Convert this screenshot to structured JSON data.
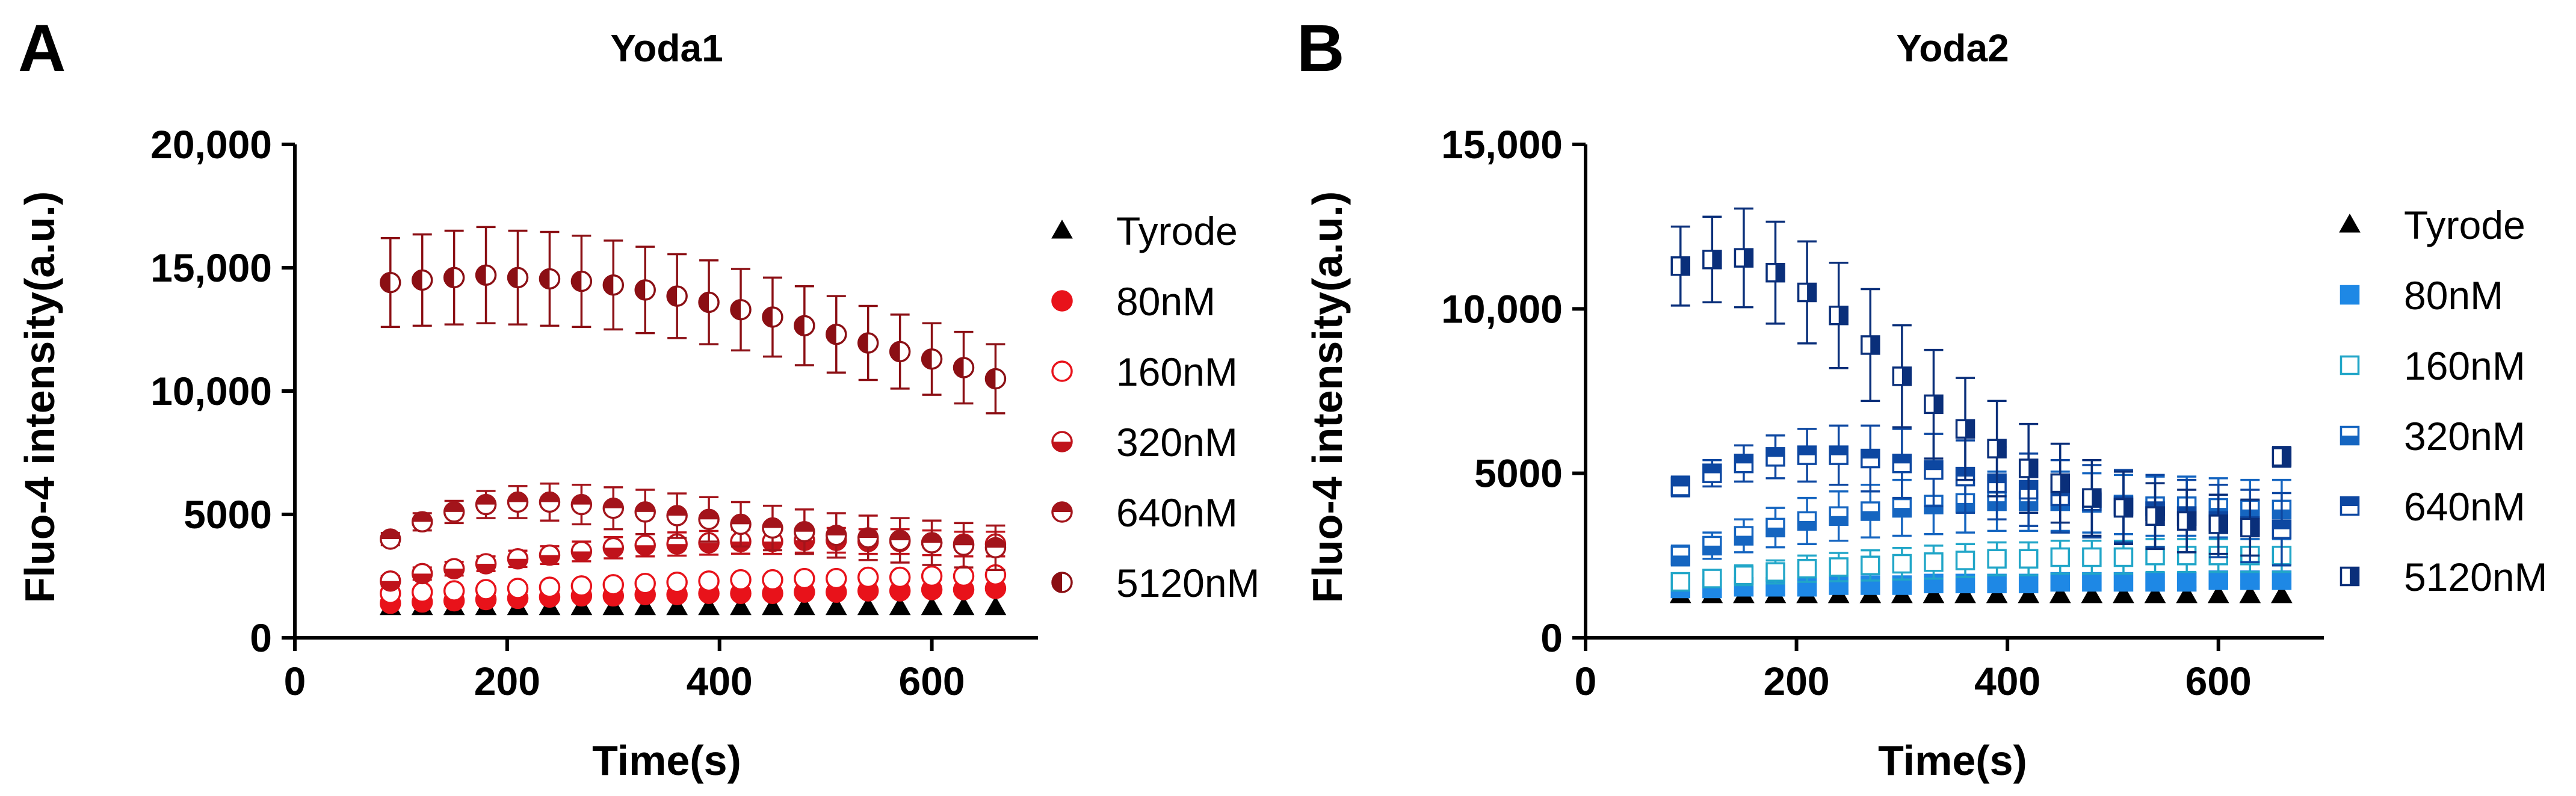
{
  "panels": [
    {
      "letter": "A",
      "title": "Yoda1",
      "xlabel": "Time(s)",
      "ylabel": "Fluo-4 intensity(a.u.)"
    },
    {
      "letter": "B",
      "title": "Yoda2",
      "xlabel": "Time(s)",
      "ylabel": "Fluo-4 intensity(a.u.)"
    }
  ],
  "chart_data": [
    {
      "type": "scatter",
      "title": "Yoda1",
      "xlabel": "Time(s)",
      "ylabel": "Fluo-4 intensity(a.u.)",
      "xlim": [
        0,
        700
      ],
      "ylim": [
        0,
        20000
      ],
      "xticks": [
        0,
        200,
        400,
        600
      ],
      "xtick_labels": [
        "0",
        "200",
        "400",
        "600"
      ],
      "yticks": [
        0,
        5000,
        10000,
        15000,
        20000
      ],
      "ytick_labels": [
        "0",
        "5000",
        "10,000",
        "15,000",
        "20,000"
      ],
      "legend_position": "right",
      "x": [
        90,
        120,
        150,
        180,
        210,
        240,
        270,
        300,
        330,
        360,
        390,
        420,
        450,
        480,
        510,
        540,
        570,
        600,
        630,
        660
      ],
      "series": [
        {
          "name": "Tyrode",
          "marker": "triangle",
          "fill": "full",
          "color": "#000000",
          "values": [
            1250,
            1250,
            1250,
            1250,
            1250,
            1250,
            1250,
            1250,
            1250,
            1250,
            1250,
            1250,
            1250,
            1250,
            1250,
            1250,
            1250,
            1250,
            1250,
            1250
          ],
          "errors": [
            0,
            0,
            0,
            0,
            0,
            0,
            0,
            0,
            0,
            0,
            0,
            0,
            0,
            0,
            0,
            0,
            0,
            0,
            0,
            0
          ]
        },
        {
          "name": "80nM",
          "marker": "circle",
          "fill": "full",
          "color": "#e8121a",
          "values": [
            1400,
            1450,
            1500,
            1550,
            1600,
            1650,
            1700,
            1700,
            1750,
            1750,
            1800,
            1800,
            1800,
            1850,
            1850,
            1900,
            1900,
            1950,
            1950,
            2000
          ],
          "errors": [
            100,
            100,
            100,
            100,
            100,
            100,
            100,
            120,
            120,
            120,
            120,
            120,
            120,
            120,
            120,
            120,
            120,
            120,
            120,
            120
          ]
        },
        {
          "name": "160nM",
          "marker": "circle",
          "fill": "none",
          "color": "#e8121a",
          "values": [
            1800,
            1850,
            1900,
            1950,
            2000,
            2050,
            2100,
            2150,
            2200,
            2250,
            2300,
            2350,
            2350,
            2400,
            2400,
            2450,
            2450,
            2500,
            2500,
            2550
          ],
          "errors": [
            120,
            120,
            120,
            130,
            130,
            130,
            140,
            140,
            140,
            150,
            150,
            150,
            150,
            150,
            150,
            150,
            150,
            150,
            150,
            150
          ]
        },
        {
          "name": "320nM",
          "marker": "circle",
          "fill": "bottom",
          "color": "#c0131b",
          "values": [
            2300,
            2600,
            2800,
            3000,
            3200,
            3350,
            3500,
            3650,
            3750,
            3800,
            3850,
            3900,
            3900,
            3950,
            3950,
            3900,
            3900,
            3850,
            3800,
            3800
          ],
          "errors": [
            200,
            250,
            280,
            300,
            330,
            360,
            400,
            430,
            450,
            470,
            480,
            490,
            500,
            500,
            500,
            500,
            500,
            500,
            500,
            500
          ]
        },
        {
          "name": "640nM",
          "marker": "circle",
          "fill": "top",
          "color": "#a3141b",
          "values": [
            4000,
            4700,
            5100,
            5400,
            5500,
            5500,
            5400,
            5250,
            5100,
            4950,
            4800,
            4600,
            4450,
            4300,
            4150,
            4050,
            3950,
            3850,
            3750,
            3650
          ],
          "errors": [
            250,
            350,
            450,
            550,
            650,
            750,
            800,
            850,
            900,
            900,
            900,
            900,
            900,
            900,
            900,
            900,
            900,
            900,
            900,
            900
          ]
        },
        {
          "name": "5120nM",
          "marker": "circle",
          "fill": "left",
          "color": "#8b0f14",
          "values": [
            14400,
            14500,
            14600,
            14700,
            14600,
            14550,
            14450,
            14300,
            14100,
            13850,
            13600,
            13300,
            13000,
            12650,
            12300,
            11950,
            11600,
            11300,
            10950,
            10500
          ],
          "errors": [
            1800,
            1850,
            1900,
            1950,
            1900,
            1900,
            1850,
            1800,
            1750,
            1700,
            1700,
            1650,
            1600,
            1600,
            1550,
            1500,
            1500,
            1450,
            1450,
            1400
          ]
        }
      ]
    },
    {
      "type": "scatter",
      "title": "Yoda2",
      "xlabel": "Time(s)",
      "ylabel": "Fluo-4 intensity(a.u.)",
      "xlim": [
        0,
        700
      ],
      "ylim": [
        0,
        15000
      ],
      "xticks": [
        0,
        200,
        400,
        600
      ],
      "xtick_labels": [
        "0",
        "200",
        "400",
        "600"
      ],
      "yticks": [
        0,
        5000,
        10000,
        15000
      ],
      "ytick_labels": [
        "0",
        "5000",
        "10,000",
        "15,000"
      ],
      "legend_position": "right",
      "x": [
        90,
        120,
        150,
        180,
        210,
        240,
        270,
        300,
        330,
        360,
        390,
        420,
        450,
        480,
        510,
        540,
        570,
        600,
        630,
        660
      ],
      "series": [
        {
          "name": "Tyrode",
          "marker": "triangle",
          "fill": "full",
          "color": "#000000",
          "values": [
            1300,
            1300,
            1300,
            1300,
            1300,
            1300,
            1300,
            1300,
            1300,
            1300,
            1300,
            1300,
            1300,
            1300,
            1300,
            1300,
            1300,
            1300,
            1300,
            1300
          ],
          "errors": [
            0,
            0,
            0,
            0,
            0,
            0,
            0,
            0,
            0,
            0,
            0,
            0,
            0,
            0,
            0,
            0,
            0,
            0,
            0,
            0
          ]
        },
        {
          "name": "80nM",
          "marker": "square",
          "fill": "full",
          "color": "#1e88e5",
          "values": [
            1500,
            1500,
            1550,
            1550,
            1550,
            1600,
            1600,
            1600,
            1650,
            1650,
            1650,
            1650,
            1700,
            1700,
            1700,
            1700,
            1700,
            1750,
            1750,
            1750
          ],
          "errors": [
            150,
            150,
            150,
            150,
            150,
            150,
            150,
            150,
            150,
            150,
            150,
            150,
            150,
            150,
            150,
            150,
            150,
            150,
            150,
            150
          ]
        },
        {
          "name": "160nM",
          "marker": "square",
          "fill": "none",
          "color": "#21a6c8",
          "values": [
            1700,
            1800,
            1900,
            2000,
            2100,
            2150,
            2200,
            2250,
            2300,
            2350,
            2400,
            2400,
            2450,
            2450,
            2450,
            2500,
            2500,
            2500,
            2500,
            2500
          ],
          "errors": [
            200,
            250,
            300,
            350,
            400,
            430,
            460,
            480,
            500,
            500,
            500,
            500,
            500,
            500,
            500,
            500,
            500,
            500,
            500,
            500
          ]
        },
        {
          "name": "320nM",
          "marker": "square",
          "fill": "bottom",
          "color": "#1565c0",
          "values": [
            2500,
            2800,
            3100,
            3350,
            3550,
            3700,
            3850,
            3950,
            4050,
            4100,
            4150,
            4150,
            4150,
            4100,
            4050,
            4000,
            4000,
            3950,
            3900,
            3900
          ],
          "errors": [
            300,
            400,
            500,
            600,
            700,
            750,
            800,
            850,
            900,
            900,
            900,
            900,
            900,
            900,
            900,
            900,
            900,
            900,
            900,
            900
          ]
        },
        {
          "name": "640nM",
          "marker": "square",
          "fill": "top",
          "color": "#0d47a1",
          "values": [
            4600,
            5000,
            5300,
            5500,
            5550,
            5550,
            5450,
            5300,
            5100,
            4900,
            4700,
            4500,
            4300,
            4150,
            4000,
            3850,
            3700,
            3550,
            3400,
            3300
          ],
          "errors": [
            300,
            400,
            550,
            650,
            800,
            900,
            1000,
            1050,
            1100,
            1100,
            1100,
            1100,
            1100,
            1100,
            1100,
            1100,
            1100,
            1100,
            1100,
            1100
          ]
        },
        {
          "name": "5120nM",
          "marker": "square",
          "fill": "right",
          "color": "#0a2f7a",
          "values": [
            11300,
            11500,
            11550,
            11100,
            10500,
            9800,
            8900,
            7950,
            7100,
            6350,
            5750,
            5150,
            4700,
            4250,
            3950,
            3700,
            3550,
            3450,
            3350,
            5500
          ],
          "errors": [
            1200,
            1300,
            1500,
            1550,
            1550,
            1600,
            1700,
            1550,
            1650,
            1550,
            1450,
            1350,
            1200,
            1150,
            1100,
            1000,
            950,
            900,
            850,
            300
          ]
        }
      ]
    }
  ]
}
